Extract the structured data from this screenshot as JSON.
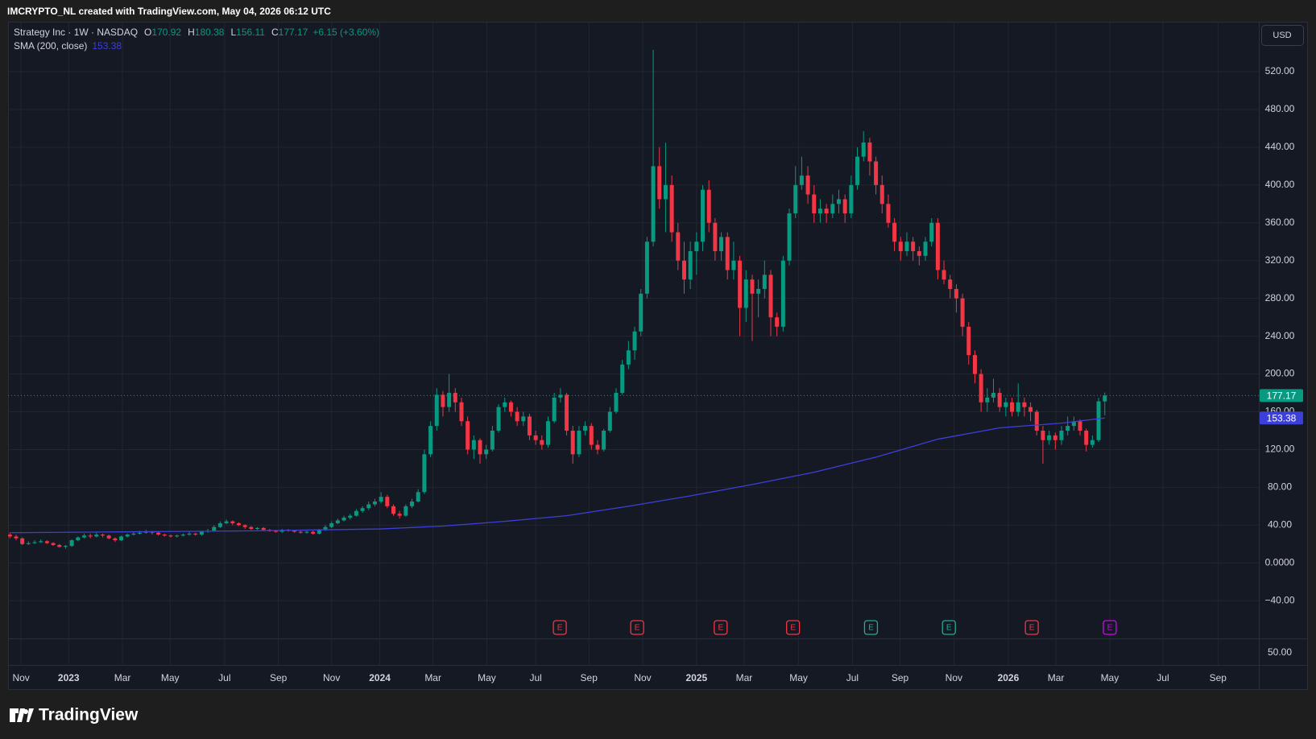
{
  "watermark": "IMCRYPTO_NL created with TradingView.com, May 04, 2026 06:12 UTC",
  "logo": "TradingView",
  "currency": "USD",
  "chart_data": {
    "type": "candlestick",
    "legend": {
      "symbol": "Strategy Inc · 1W · NASDAQ",
      "o": "O",
      "h": "H",
      "l": "L",
      "c": "C",
      "change": "+6.15 (+3.60%)",
      "sma_name": "SMA (200, close)"
    },
    "up_color": "#089981",
    "down_color": "#f23645",
    "grid": true,
    "xlim": [
      -0.3,
      201.9
    ],
    "ylim": [
      -79,
      572
    ],
    "yticks": [
      {
        "value": -40,
        "label": "−40.00"
      },
      {
        "value": 0,
        "label": "0.0000"
      },
      {
        "value": 40,
        "label": "40.00"
      },
      {
        "value": 80,
        "label": "80.00"
      },
      {
        "value": 120,
        "label": "120.00"
      },
      {
        "value": 160,
        "label": "160.00"
      },
      {
        "value": 200,
        "label": "200.00"
      },
      {
        "value": 240,
        "label": "240.00"
      },
      {
        "value": 280,
        "label": "280.00"
      },
      {
        "value": 320,
        "label": "320.00"
      },
      {
        "value": 360,
        "label": "360.00"
      },
      {
        "value": 400,
        "label": "400.00"
      },
      {
        "value": 440,
        "label": "440.00"
      },
      {
        "value": 480,
        "label": "480.00"
      },
      {
        "value": 520,
        "label": "520.00"
      }
    ],
    "xticks": [
      {
        "value": 1.8,
        "label": "Nov"
      },
      {
        "value": 9.5,
        "label": "2023"
      },
      {
        "value": 18.2,
        "label": "Mar"
      },
      {
        "value": 25.9,
        "label": "May"
      },
      {
        "value": 34.7,
        "label": "Jul"
      },
      {
        "value": 43.4,
        "label": "Sep"
      },
      {
        "value": 52,
        "label": "Nov"
      },
      {
        "value": 59.8,
        "label": "2024"
      },
      {
        "value": 68.4,
        "label": "Mar"
      },
      {
        "value": 77.1,
        "label": "May"
      },
      {
        "value": 85,
        "label": "Jul"
      },
      {
        "value": 93.6,
        "label": "Sep"
      },
      {
        "value": 102.3,
        "label": "Nov"
      },
      {
        "value": 111,
        "label": "2025"
      },
      {
        "value": 118.7,
        "label": "Mar"
      },
      {
        "value": 127.5,
        "label": "May"
      },
      {
        "value": 136.2,
        "label": "Jul"
      },
      {
        "value": 143.9,
        "label": "Sep"
      },
      {
        "value": 152.6,
        "label": "Nov"
      },
      {
        "value": 161.4,
        "label": "2026"
      },
      {
        "value": 169.1,
        "label": "Mar"
      },
      {
        "value": 177.8,
        "label": "May"
      },
      {
        "value": 186.4,
        "label": "Jul"
      },
      {
        "value": 195.3,
        "label": "Sep"
      }
    ],
    "open": [
      30,
      28,
      26,
      20,
      21,
      22,
      23,
      21,
      19,
      17,
      18,
      24,
      27,
      29,
      28,
      30,
      29,
      26,
      24,
      28,
      30,
      31,
      32,
      33,
      32,
      30,
      29,
      28,
      29,
      30,
      31,
      30,
      33,
      34,
      38,
      42,
      44,
      42,
      40,
      38,
      36,
      37,
      35,
      34,
      33,
      35,
      34,
      33,
      32,
      33,
      31,
      35,
      38,
      42,
      45,
      48,
      50,
      55,
      58,
      62,
      65,
      70,
      60,
      52,
      50,
      60,
      65,
      75,
      115,
      145,
      178,
      165,
      180,
      170,
      150,
      120,
      130,
      115,
      120,
      140,
      165,
      170,
      160,
      150,
      155,
      135,
      130,
      125,
      150,
      175,
      178,
      140,
      115,
      140,
      145,
      125,
      120,
      140,
      160,
      180,
      210,
      225,
      245,
      285,
      340,
      420,
      385,
      400,
      350,
      320,
      300,
      330,
      340,
      395,
      360,
      330,
      345,
      310,
      320,
      270,
      300,
      285,
      290,
      305,
      260,
      250,
      320,
      370,
      400,
      410,
      390,
      370,
      375,
      370,
      380,
      385,
      370,
      400,
      430,
      445,
      425,
      400,
      380,
      360,
      340,
      330,
      340,
      330,
      325,
      340,
      360,
      310,
      300,
      290,
      280,
      250,
      220,
      200,
      170,
      175,
      180,
      165,
      170,
      160,
      170,
      165,
      160,
      140,
      130,
      135,
      130,
      140,
      145,
      150,
      140,
      125,
      130,
      170.92
    ],
    "high": [
      32,
      30,
      27,
      23,
      24,
      25,
      24,
      22,
      20,
      19,
      25,
      28,
      31,
      31,
      32,
      31,
      30,
      27,
      29,
      31,
      33,
      34,
      35,
      34,
      33,
      31,
      30,
      30,
      31,
      33,
      32,
      34,
      36,
      40,
      44,
      46,
      45,
      43,
      41,
      39,
      38,
      38,
      36,
      35,
      36,
      36,
      35,
      34,
      34,
      34,
      36,
      40,
      44,
      47,
      50,
      52,
      57,
      60,
      65,
      68,
      75,
      72,
      62,
      55,
      62,
      68,
      78,
      120,
      150,
      185,
      182,
      200,
      185,
      175,
      155,
      135,
      132,
      125,
      145,
      168,
      175,
      172,
      165,
      160,
      158,
      140,
      135,
      155,
      180,
      185,
      180,
      145,
      145,
      150,
      148,
      130,
      142,
      165,
      185,
      215,
      235,
      250,
      290,
      345,
      543,
      440,
      445,
      410,
      360,
      340,
      340,
      350,
      400,
      405,
      365,
      350,
      350,
      340,
      325,
      310,
      305,
      300,
      320,
      310,
      265,
      325,
      375,
      420,
      430,
      420,
      400,
      385,
      380,
      390,
      395,
      390,
      410,
      440,
      457,
      450,
      430,
      410,
      390,
      365,
      345,
      350,
      345,
      335,
      345,
      365,
      365,
      320,
      305,
      295,
      285,
      255,
      225,
      205,
      185,
      195,
      185,
      175,
      175,
      190,
      175,
      170,
      162,
      145,
      140,
      138,
      145,
      155,
      155,
      152,
      142,
      135,
      175,
      180.38
    ],
    "low": [
      26,
      24,
      19,
      19,
      20,
      21,
      20,
      18,
      16,
      15,
      17,
      23,
      26,
      26,
      27,
      27,
      25,
      22,
      23,
      27,
      29,
      30,
      31,
      30,
      29,
      28,
      27,
      27,
      28,
      29,
      29,
      29,
      32,
      33,
      37,
      41,
      40,
      39,
      36,
      35,
      35,
      34,
      33,
      32,
      32,
      33,
      32,
      31,
      31,
      30,
      30,
      34,
      37,
      41,
      44,
      46,
      49,
      53,
      56,
      60,
      63,
      58,
      50,
      47,
      49,
      58,
      64,
      73,
      112,
      140,
      155,
      160,
      160,
      145,
      115,
      110,
      105,
      110,
      118,
      138,
      160,
      155,
      145,
      145,
      130,
      125,
      120,
      122,
      148,
      170,
      135,
      105,
      112,
      135,
      120,
      115,
      118,
      138,
      158,
      178,
      205,
      215,
      240,
      280,
      335,
      375,
      350,
      340,
      310,
      285,
      290,
      305,
      330,
      350,
      320,
      320,
      300,
      300,
      240,
      255,
      235,
      260,
      280,
      240,
      240,
      245,
      315,
      365,
      395,
      380,
      360,
      360,
      360,
      365,
      370,
      360,
      365,
      395,
      425,
      410,
      390,
      370,
      355,
      330,
      320,
      325,
      320,
      315,
      320,
      335,
      300,
      295,
      280,
      265,
      240,
      210,
      190,
      160,
      160,
      170,
      160,
      155,
      155,
      155,
      155,
      150,
      135,
      105,
      125,
      120,
      125,
      135,
      140,
      135,
      118,
      122,
      128,
      156.11
    ],
    "close": [
      28,
      26,
      20,
      21,
      22,
      23,
      21,
      19,
      17,
      18,
      24,
      27,
      29,
      28,
      30,
      29,
      26,
      24,
      28,
      30,
      31,
      32,
      33,
      32,
      30,
      29,
      28,
      29,
      30,
      31,
      30,
      33,
      34,
      38,
      42,
      44,
      42,
      40,
      38,
      36,
      37,
      35,
      34,
      33,
      35,
      34,
      33,
      32,
      33,
      31,
      35,
      38,
      42,
      45,
      48,
      50,
      55,
      58,
      62,
      65,
      70,
      60,
      52,
      50,
      60,
      65,
      75,
      115,
      145,
      178,
      165,
      180,
      170,
      150,
      120,
      130,
      115,
      120,
      140,
      165,
      170,
      160,
      150,
      155,
      135,
      130,
      125,
      150,
      175,
      178,
      140,
      115,
      140,
      145,
      125,
      120,
      140,
      160,
      180,
      210,
      225,
      245,
      285,
      340,
      420,
      385,
      400,
      350,
      320,
      300,
      330,
      340,
      395,
      360,
      330,
      345,
      310,
      320,
      270,
      300,
      285,
      290,
      305,
      260,
      250,
      320,
      370,
      400,
      410,
      390,
      370,
      375,
      370,
      380,
      385,
      370,
      400,
      430,
      445,
      425,
      400,
      380,
      360,
      340,
      330,
      340,
      330,
      325,
      340,
      360,
      310,
      300,
      290,
      280,
      250,
      220,
      200,
      170,
      175,
      180,
      165,
      170,
      160,
      170,
      165,
      160,
      140,
      130,
      135,
      130,
      140,
      145,
      150,
      140,
      125,
      130,
      171.02,
      177.17
    ],
    "sma": {
      "color": "#3d3fd9",
      "x": [
        0,
        20,
        40,
        60,
        70,
        80,
        90,
        100,
        110,
        120,
        130,
        140,
        150,
        160,
        170,
        177
      ],
      "values": [
        32,
        33,
        34,
        36,
        39,
        44,
        50,
        60,
        71,
        83,
        96,
        112,
        131,
        143,
        148,
        153.38
      ]
    },
    "events": [
      {
        "x": 88.9,
        "label": "E",
        "color": "#f23645"
      },
      {
        "x": 101.4,
        "label": "E",
        "color": "#f23645"
      },
      {
        "x": 114.9,
        "label": "E",
        "color": "#f23645"
      },
      {
        "x": 126.6,
        "label": "E",
        "color": "#f23645"
      },
      {
        "x": 139.2,
        "label": "E",
        "color": "#22ab94"
      },
      {
        "x": 151.8,
        "label": "E",
        "color": "#22ab94"
      },
      {
        "x": 165.2,
        "label": "E",
        "color": "#f23645"
      },
      {
        "x": 177.8,
        "label": "E",
        "color": "#d500f9"
      }
    ],
    "lower_pane_tick": "50.00"
  }
}
